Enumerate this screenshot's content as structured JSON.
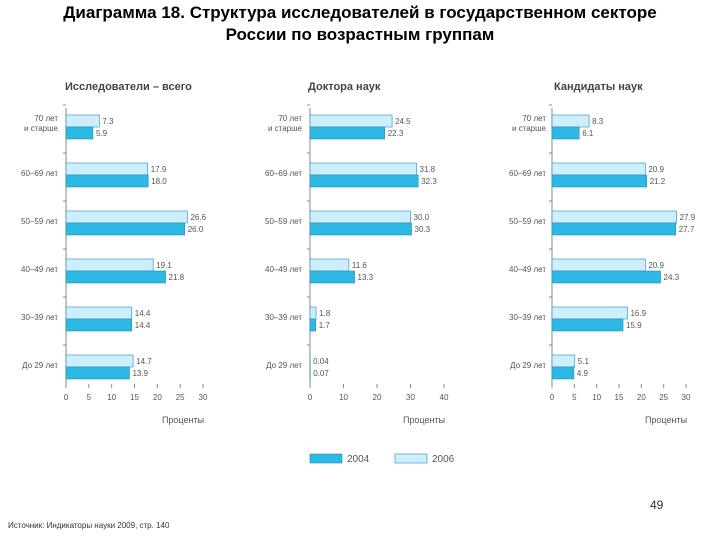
{
  "title": {
    "line1": "Диаграмма 18. Структура исследователей в государственном секторе",
    "line2": "России по возрастным группам"
  },
  "page_number": "49",
  "source": "Источник: Индикаторы науки 2009, стр. 140",
  "colors": {
    "series_2004": "#2eb8e6",
    "series_2006": "#cdeefa",
    "border": "#1f8fb8",
    "axis": "#888888",
    "text": "#555555"
  },
  "legend": {
    "items": [
      "2004",
      "2006"
    ]
  },
  "chart_data": [
    {
      "type": "bar",
      "orientation": "horizontal",
      "title": "Исследователи – всего",
      "xlabel": "Проценты",
      "categories": [
        "70 лет\nи старше",
        "60–69 лет",
        "50–59 лет",
        "40–49 лет",
        "30–39 лет",
        "До 29 лет"
      ],
      "xlim": [
        0,
        30
      ],
      "xticks": [
        0,
        5,
        10,
        15,
        20,
        25,
        30
      ],
      "series": [
        {
          "name": "2006",
          "values": [
            7.3,
            17.9,
            26.6,
            19.1,
            14.4,
            14.7
          ],
          "labels": [
            "7.3",
            "17.9",
            "26.6",
            "19.1",
            "14.4",
            "14.7"
          ]
        },
        {
          "name": "2004",
          "values": [
            5.9,
            18.0,
            26.0,
            21.8,
            14.4,
            13.9
          ],
          "labels": [
            "5.9",
            "18.0",
            "26.0",
            "21.8",
            "14.4",
            "13.9"
          ]
        }
      ]
    },
    {
      "type": "bar",
      "orientation": "horizontal",
      "title": "Доктора наук",
      "xlabel": "Проценты",
      "categories": [
        "70 лет\nи старше",
        "60–69 лет",
        "50–59 лет",
        "40–49 лет",
        "30–39 лет",
        "До 29 лет"
      ],
      "xlim": [
        0,
        40
      ],
      "xticks": [
        0,
        10,
        20,
        30,
        40
      ],
      "series": [
        {
          "name": "2006",
          "values": [
            24.5,
            31.8,
            30.0,
            11.6,
            1.8,
            0.04
          ],
          "labels": [
            "24.5",
            "31.8",
            "30.0",
            "11.6",
            "1.8",
            "0.04"
          ]
        },
        {
          "name": "2004",
          "values": [
            22.3,
            32.3,
            30.3,
            13.3,
            1.7,
            0.07
          ],
          "labels": [
            "22.3",
            "32.3",
            "30.3",
            "13.3",
            "1.7",
            "0.07"
          ]
        }
      ]
    },
    {
      "type": "bar",
      "orientation": "horizontal",
      "title": "Кандидаты наук",
      "xlabel": "Проценты",
      "categories": [
        "70 лет\nи старше",
        "60–69 лет",
        "50–59 лет",
        "40–49 лет",
        "30–39 лет",
        "До 29 лет"
      ],
      "xlim": [
        0,
        30
      ],
      "xticks": [
        0,
        5,
        10,
        15,
        20,
        25,
        30
      ],
      "series": [
        {
          "name": "2006",
          "values": [
            8.3,
            20.9,
            27.9,
            20.9,
            16.9,
            5.1
          ],
          "labels": [
            "8.3",
            "20.9",
            "27.9",
            "20.9",
            "16.9",
            "5.1"
          ]
        },
        {
          "name": "2004",
          "values": [
            6.1,
            21.2,
            27.7,
            24.3,
            15.9,
            4.9
          ],
          "labels": [
            "6.1",
            "21.2",
            "27.7",
            "24.3",
            "15.9",
            "4.9"
          ]
        }
      ]
    }
  ]
}
